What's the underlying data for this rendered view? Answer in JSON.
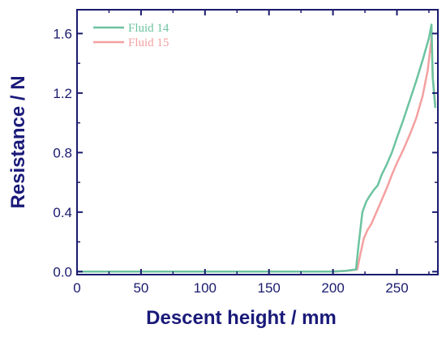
{
  "chart_data": {
    "type": "line",
    "title": "",
    "xlabel": "Descent height / mm",
    "ylabel": "Resistance / N",
    "xlim": [
      0,
      282
    ],
    "ylim": [
      -0.02,
      1.76
    ],
    "x_ticks": [
      0,
      50,
      100,
      150,
      200,
      250
    ],
    "x_tick_labels": [
      "0",
      "50",
      "100",
      "150",
      "200",
      "250"
    ],
    "y_ticks": [
      0.0,
      0.4,
      0.8,
      1.2,
      1.6
    ],
    "y_tick_labels": [
      "0.0",
      "0.4",
      "0.8",
      "1.2",
      "1.6"
    ],
    "grid": false,
    "legend_position": "top-left",
    "series": [
      {
        "name": "Fluid 14",
        "color": "#6cc3a0",
        "x": [
          0,
          200,
          210,
          218,
          220,
          223,
          226,
          228,
          232,
          235,
          238,
          242,
          246,
          250,
          255,
          260,
          265,
          270,
          275,
          277,
          278,
          280
        ],
        "y": [
          0.0,
          0.0,
          0.005,
          0.015,
          0.18,
          0.4,
          0.47,
          0.5,
          0.55,
          0.58,
          0.65,
          0.72,
          0.8,
          0.9,
          1.02,
          1.15,
          1.28,
          1.42,
          1.57,
          1.66,
          1.3,
          1.1
        ]
      },
      {
        "name": "Fluid 15",
        "color": "#f4a0a0",
        "x": [
          0,
          200,
          210,
          219,
          221,
          224,
          227,
          230,
          234,
          238,
          242,
          246,
          250,
          255,
          260,
          265,
          270,
          274,
          277,
          278,
          280
        ],
        "y": [
          0.0,
          0.0,
          0.005,
          0.015,
          0.1,
          0.22,
          0.28,
          0.32,
          0.4,
          0.48,
          0.56,
          0.65,
          0.73,
          0.82,
          0.92,
          1.03,
          1.18,
          1.35,
          1.57,
          1.3,
          1.12
        ]
      }
    ]
  }
}
